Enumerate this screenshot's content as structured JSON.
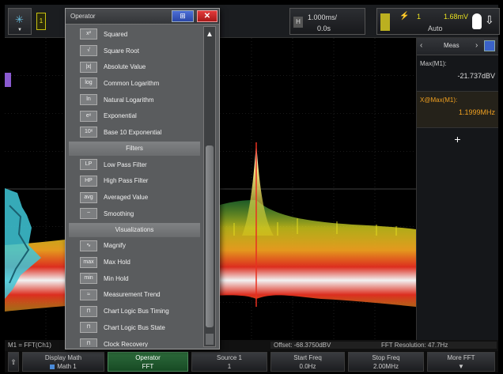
{
  "window": {
    "menu_title": "Operator",
    "close_label": "✕",
    "grid_label": "⊞"
  },
  "topbar": {
    "channel_label": "1",
    "timebase": "1.000ms/",
    "delay": "0.0s",
    "trigger_channel": "1",
    "trigger_level": "1.68mV",
    "trigger_mode": "Auto",
    "h_label": "H"
  },
  "operator_menu": {
    "items": [
      {
        "kind": "item",
        "icon": "x²",
        "label": "Squared"
      },
      {
        "kind": "item",
        "icon": "√",
        "label": "Square Root"
      },
      {
        "kind": "item",
        "icon": "|x|",
        "label": "Absolute Value"
      },
      {
        "kind": "item",
        "icon": "log",
        "label": "Common Logarithm"
      },
      {
        "kind": "item",
        "icon": "ln",
        "label": "Natural Logarithm"
      },
      {
        "kind": "item",
        "icon": "eˣ",
        "label": "Exponential"
      },
      {
        "kind": "item",
        "icon": "10ˣ",
        "label": "Base 10 Exponential"
      },
      {
        "kind": "category",
        "label": "Filters"
      },
      {
        "kind": "item",
        "icon": "LP",
        "label": "Low Pass Filter"
      },
      {
        "kind": "item",
        "icon": "HP",
        "label": "High Pass Filter"
      },
      {
        "kind": "item",
        "icon": "avg",
        "label": "Averaged Value"
      },
      {
        "kind": "item",
        "icon": "~",
        "label": "Smoothing"
      },
      {
        "kind": "category",
        "label": "Visualizations"
      },
      {
        "kind": "item",
        "icon": "∿",
        "label": "Magnify"
      },
      {
        "kind": "item",
        "icon": "max",
        "label": "Max Hold"
      },
      {
        "kind": "item",
        "icon": "min",
        "label": "Min Hold"
      },
      {
        "kind": "item",
        "icon": "≈",
        "label": "Measurement Trend"
      },
      {
        "kind": "item",
        "icon": "⊓",
        "label": "Chart Logic Bus Timing"
      },
      {
        "kind": "item",
        "icon": "⊓",
        "label": "Chart Logic Bus State"
      },
      {
        "kind": "item",
        "icon": "⊓",
        "label": "Clock Recovery"
      }
    ]
  },
  "measurements": {
    "title": "Meas",
    "items": [
      {
        "name": "Max(M1):",
        "value": "-21.737dBV",
        "selected": false
      },
      {
        "name": "X@Max(M1):",
        "value": "1.1999MHz",
        "selected": true
      }
    ],
    "add_label": "+"
  },
  "status": {
    "fft_label": "M1 = FFT(Ch1)",
    "offset": "Offset: -68.3750dBV",
    "resolution": "FFT Resolution: 47.7Hz"
  },
  "softkeys": {
    "display_top": "Display Math",
    "display_bottom": "Math 1",
    "operator_top": "Operator",
    "operator_bottom": "FFT",
    "source_top": "Source 1",
    "source_bottom": "1",
    "start_top": "Start Freq",
    "start_bottom": "0.0Hz",
    "stop_top": "Stop Freq",
    "stop_bottom": "2.00MHz",
    "more_top": "More FFT",
    "more_bottom": "▼"
  },
  "colors": {
    "spectrum_hot": "#ffffff",
    "spectrum_warm": "#e83020",
    "spectrum_mid": "#f0a020",
    "spectrum_cool": "#e8e020",
    "spectrum_low": "#40c050",
    "histogram": "#40c8d8",
    "menu_bg": "#5a5c5e",
    "active_softkey": "#2c6a3a"
  }
}
